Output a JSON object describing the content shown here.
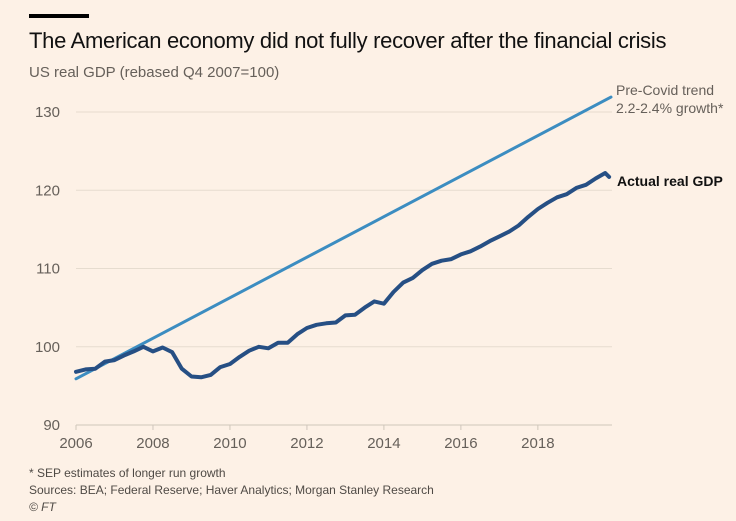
{
  "header": {
    "title": "The American economy did not fully recover after the financial crisis",
    "subtitle": "US real GDP (rebased Q4 2007=100)"
  },
  "footer": {
    "note": "* SEP estimates of longer run growth",
    "sources": "Sources: BEA; Federal Reserve; Haver Analytics; Morgan Stanley Research",
    "copyright": "© FT"
  },
  "colors": {
    "background": "#fdf1e6",
    "trend": "#3c8dc1",
    "actual": "#264f84",
    "grid": "#e6dccf",
    "axis_text": "#66605a"
  },
  "chart_data": {
    "type": "line",
    "title": "The American economy did not fully recover after the financial crisis",
    "subtitle": "US real GDP (rebased Q4 2007=100)",
    "xlabel": "",
    "ylabel": "",
    "xlim": [
      2006,
      2019.9
    ],
    "ylim": [
      90,
      130
    ],
    "xticks": [
      2006,
      2008,
      2010,
      2012,
      2014,
      2016,
      2018
    ],
    "yticks": [
      90,
      100,
      110,
      120,
      130
    ],
    "grid": true,
    "series": [
      {
        "name": "Pre-Covid trend",
        "label_lines": [
          "Pre-Covid trend",
          "2.2-2.4% growth*"
        ],
        "x": [
          2006,
          2019.9
        ],
        "values": [
          95.9,
          131.9
        ]
      },
      {
        "name": "Actual real GDP",
        "label_lines": [
          "Actual real GDP"
        ],
        "x": [
          2006.0,
          2006.25,
          2006.5,
          2006.75,
          2007.0,
          2007.25,
          2007.5,
          2007.75,
          2008.0,
          2008.25,
          2008.5,
          2008.75,
          2009.0,
          2009.25,
          2009.5,
          2009.75,
          2010.0,
          2010.25,
          2010.5,
          2010.75,
          2011.0,
          2011.25,
          2011.5,
          2011.75,
          2012.0,
          2012.25,
          2012.5,
          2012.75,
          2013.0,
          2013.25,
          2013.5,
          2013.75,
          2014.0,
          2014.25,
          2014.5,
          2014.75,
          2015.0,
          2015.25,
          2015.5,
          2015.75,
          2016.0,
          2016.25,
          2016.5,
          2016.75,
          2017.0,
          2017.25,
          2017.5,
          2017.75,
          2018.0,
          2018.25,
          2018.5,
          2018.75,
          2019.0,
          2019.25,
          2019.5,
          2019.75,
          2019.85
        ],
        "values": [
          96.8,
          97.1,
          97.2,
          98.1,
          98.3,
          98.9,
          99.4,
          100.0,
          99.4,
          99.9,
          99.3,
          97.2,
          96.2,
          96.1,
          96.4,
          97.4,
          97.8,
          98.7,
          99.5,
          100.0,
          99.8,
          100.5,
          100.5,
          101.6,
          102.4,
          102.8,
          103.0,
          103.1,
          104.0,
          104.1,
          105.0,
          105.8,
          105.5,
          107.0,
          108.2,
          108.8,
          109.8,
          110.6,
          111.0,
          111.2,
          111.8,
          112.2,
          112.8,
          113.5,
          114.1,
          114.7,
          115.5,
          116.6,
          117.6,
          118.4,
          119.1,
          119.5,
          120.3,
          120.7,
          121.5,
          122.2,
          121.7
        ]
      }
    ],
    "annotations": [
      {
        "text": "* SEP estimates of longer run growth"
      }
    ]
  }
}
